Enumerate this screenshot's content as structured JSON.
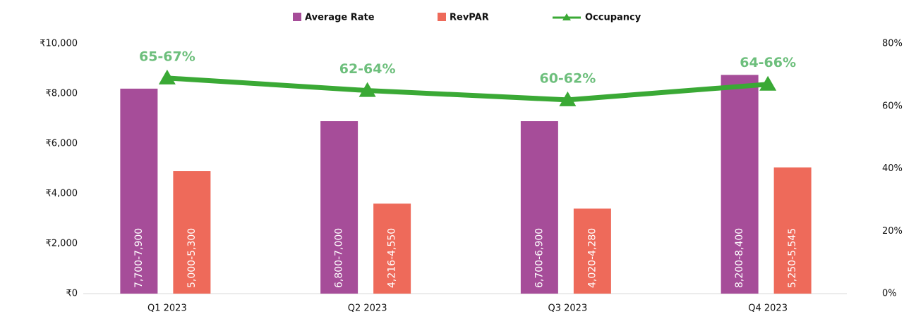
{
  "chart_data": {
    "type": "bar_line",
    "categories": [
      "Q1 2023",
      "Q2 2023",
      "Q3 2023",
      "Q4 2023"
    ],
    "series": [
      {
        "name": "Average Rate",
        "type": "bar",
        "color": "#a64d99",
        "values": [
          8200,
          6900,
          6900,
          8750
        ],
        "range_labels": [
          "7,700-7,900",
          "6,800-7,000",
          "6,700-6,900",
          "8,200-8,400"
        ]
      },
      {
        "name": "RevPAR",
        "type": "bar",
        "color": "#ee6a5a",
        "values": [
          4900,
          3600,
          3400,
          5050
        ],
        "range_labels": [
          "5,000-5,300",
          "4,216-4,550",
          "4,020-4,280",
          "5,250-5,545"
        ]
      },
      {
        "name": "Occupancy",
        "type": "line",
        "axis": "y2",
        "color": "#3aa935",
        "label_color": "#6dbf7c",
        "values": [
          69,
          65,
          62,
          67
        ],
        "range_labels": [
          "65-67%",
          "62-64%",
          "60-62%",
          "64-66%"
        ]
      }
    ],
    "ylim": [
      0,
      10000
    ],
    "yticks": [
      {
        "value": 0,
        "label": "₹0"
      },
      {
        "value": 2000,
        "label": "₹2,000"
      },
      {
        "value": 4000,
        "label": "₹4,000"
      },
      {
        "value": 6000,
        "label": "₹6,000"
      },
      {
        "value": 8000,
        "label": "₹8,000"
      },
      {
        "value": 10000,
        "label": "₹10,000"
      }
    ],
    "y2lim": [
      0,
      80
    ],
    "y2ticks": [
      {
        "value": 0,
        "label": "0%"
      },
      {
        "value": 20,
        "label": "20%"
      },
      {
        "value": 40,
        "label": "40%"
      },
      {
        "value": 60,
        "label": "60%"
      },
      {
        "value": 80,
        "label": "80%"
      }
    ],
    "legend": "top"
  }
}
